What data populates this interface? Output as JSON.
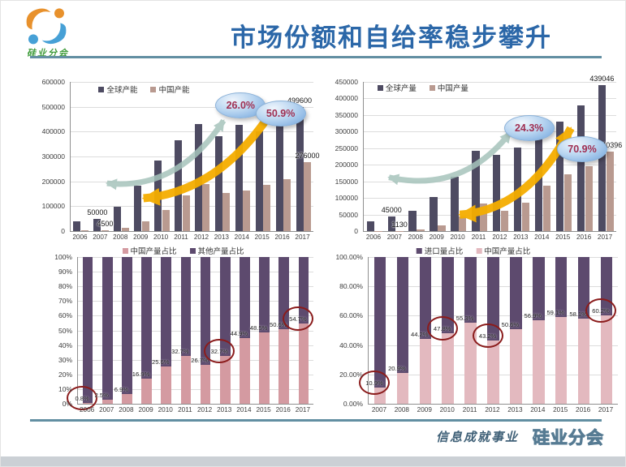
{
  "slide": {
    "title": "市场份额和自给率稳步攀升",
    "logo_text": "硅业分会",
    "footer_text": "信息成就事业",
    "footer_watermark": "硅业分会",
    "colors": {
      "title_blue": "#2b67a8",
      "divider_teal": "#628fa2",
      "global_bar": "#4e4b62",
      "china_bar": "#b99a90",
      "share_pink": "#d49aa1",
      "share_pink_light": "#e3b9bf",
      "share_purple": "#5d4a6e",
      "highlight_circle_red": "#8b1c1c",
      "badge_text": "#a02f52",
      "arrow_teal": "#a6c4bc",
      "arrow_yellow": "#f5ad00"
    }
  },
  "chart_data": [
    {
      "type": "bar",
      "title": "",
      "categories": [
        "2006",
        "2007",
        "2008",
        "2009",
        "2010",
        "2011",
        "2012",
        "2013",
        "2014",
        "2015",
        "2016",
        "2017"
      ],
      "series": [
        {
          "name": "全球产能",
          "color": "#4e4b62",
          "values": [
            40000,
            50000,
            98000,
            183000,
            283000,
            365000,
            430000,
            380000,
            428000,
            402000,
            455000,
            499600
          ]
        },
        {
          "name": "中国产能",
          "color": "#b99a90",
          "values": [
            2000,
            4500,
            14000,
            39000,
            84000,
            144000,
            189000,
            153000,
            164000,
            187000,
            208000,
            276000
          ]
        }
      ],
      "ymax": 600000,
      "yticks": [
        "0",
        "100000",
        "200000",
        "300000",
        "400000",
        "500000",
        "600000"
      ],
      "point_labels": [
        {
          "series": 0,
          "category": "2007",
          "text": "50000"
        },
        {
          "series": 1,
          "category": "2007",
          "text": "4500"
        },
        {
          "series": 0,
          "category": "2017",
          "text": "499600"
        },
        {
          "series": 1,
          "category": "2017",
          "text": "276000"
        }
      ],
      "badges": [
        "26.0%",
        "50.9%"
      ],
      "legend_position": "inner-top-left",
      "grid": true
    },
    {
      "type": "bar",
      "title": "",
      "categories": [
        "2006",
        "2007",
        "2008",
        "2009",
        "2010",
        "2011",
        "2012",
        "2013",
        "2014",
        "2015",
        "2016",
        "2017"
      ],
      "series": [
        {
          "name": "全球产量",
          "color": "#4e4b62",
          "values": [
            30000,
            45000,
            62000,
            103000,
            165000,
            242000,
            230000,
            253000,
            300000,
            330000,
            380000,
            439046
          ]
        },
        {
          "name": "中国产量",
          "color": "#b99a90",
          "values": [
            1000,
            1130,
            4500,
            18000,
            45000,
            82000,
            60000,
            85000,
            137000,
            170000,
            195000,
            240396
          ]
        }
      ],
      "ymax": 450000,
      "yticks": [
        "0",
        "50000",
        "100000",
        "150000",
        "200000",
        "250000",
        "300000",
        "350000",
        "400000",
        "450000"
      ],
      "point_labels": [
        {
          "series": 0,
          "category": "2007",
          "text": "45000"
        },
        {
          "series": 1,
          "category": "2007",
          "text": "1130"
        },
        {
          "series": 0,
          "category": "2017",
          "text": "439046"
        },
        {
          "series": 1,
          "category": "2017",
          "text": "240396"
        }
      ],
      "badges": [
        "24.3%",
        "70.9%"
      ],
      "legend_position": "inner-top-left",
      "grid": true
    },
    {
      "type": "stacked100",
      "title": "",
      "categories": [
        "2006",
        "2007",
        "2008",
        "2009",
        "2010",
        "2011",
        "2012",
        "2013",
        "2014",
        "2015",
        "2016",
        "2017"
      ],
      "series": [
        {
          "name": "中国产量占比",
          "color": "#d49aa1"
        },
        {
          "name": "其他产量占比",
          "color": "#5d4a6e"
        }
      ],
      "bottom_color": "#d49aa1",
      "top_color": "#5d4a6e",
      "bottom_values": [
        0.8,
        2.5,
        6.9,
        16.9,
        25.6,
        32.7,
        26.7,
        32.7,
        44.9,
        48.5,
        50.6,
        54.7
      ],
      "labels": [
        "0.8%",
        "2.5%",
        "6.9%",
        "16.9%",
        "25.6%",
        "32.7%",
        "26.7%",
        "32.7%",
        "44.9%",
        "48.5%",
        "50.6%",
        "54.7%"
      ],
      "circled": [
        "2006",
        "2013",
        "2017"
      ],
      "yticks": [
        "0%",
        "10%",
        "20%",
        "30%",
        "40%",
        "50%",
        "60%",
        "70%",
        "80%",
        "90%",
        "100%"
      ],
      "legend_position": "top-center",
      "grid": true
    },
    {
      "type": "stacked100",
      "title": "",
      "categories": [
        "2007",
        "2008",
        "2009",
        "2010",
        "2011",
        "2012",
        "2013",
        "2014",
        "2015",
        "2016",
        "2017"
      ],
      "series": [
        {
          "name": "进口量占比",
          "color": "#5d4a6e"
        },
        {
          "name": "中国产量占比",
          "color": "#e3b9bf"
        }
      ],
      "bottom_color": "#e3b9bf",
      "top_color": "#5d4a6e",
      "bottom_values": [
        10.9,
        20.9,
        44.2,
        47.8,
        55.3,
        43.2,
        50.6,
        56.9,
        59.1,
        58.1,
        60.2
      ],
      "labels": [
        "10.9%",
        "20.9%",
        "44.2%",
        "47.8%",
        "55.3%",
        "43.2%",
        "50.6%",
        "56.9%",
        "59.1%",
        "58.1%",
        "60.2%"
      ],
      "circled": [
        "2007",
        "2010",
        "2012",
        "2017"
      ],
      "yticks": [
        "0.00%",
        "20.00%",
        "40.00%",
        "60.00%",
        "80.00%",
        "100.00%"
      ],
      "legend_position": "top-center",
      "grid": true
    }
  ]
}
